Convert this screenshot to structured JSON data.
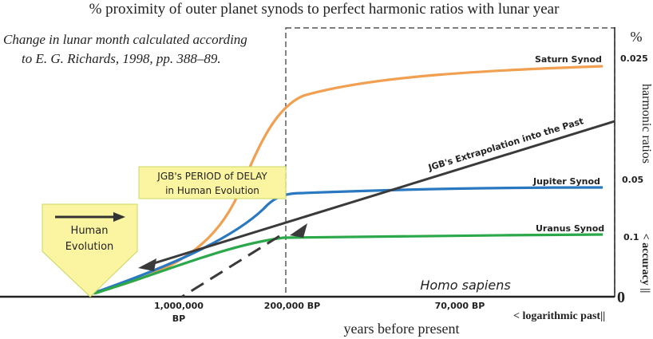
{
  "chart_data": {
    "type": "line",
    "title": "% proximity of outer planet synods to perfect harmonic ratios with lunar year",
    "subtitle": [
      "Change in lunar month calculated according",
      "to E. G. Richards, 1998, pp. 388–89."
    ],
    "xlabel": "years before present",
    "x_scale_label": "< logarithmic past||",
    "ylabel": "harmonic ratios",
    "ylabel_axis": "< accuracy ||",
    "y_unit": "%",
    "x_ticks": [
      {
        "label": [
          "1,000,000",
          "BP"
        ]
      },
      {
        "label": [
          "200,000 BP"
        ]
      },
      {
        "label": [
          "70,000 BP"
        ]
      }
    ],
    "y_ticks": [
      {
        "label": "0.025"
      },
      {
        "label": "0.05"
      },
      {
        "label": "0.1"
      },
      {
        "label": "0"
      }
    ],
    "region_label": "Homo sapiens",
    "series": [
      {
        "name": "Saturn Synod",
        "color": "#f0a050",
        "values": "low near 1,000,000 BP, steep rise to near 0.025 by 200,000 BP, then slow flattening rise"
      },
      {
        "name": "Jupiter Synod",
        "color": "#2a78c0",
        "values": "rises to near 0.05 by 200,000 BP, then flat"
      },
      {
        "name": "Uranus Synod",
        "color": "#2aa84a",
        "values": "rises to near 0.1 by 200,000 BP, then nearly flat"
      },
      {
        "name": "JGB's Extrapolation into the Past",
        "color": "#3a3a3a",
        "values": "straight line from present back to 1,000,000 BP"
      }
    ],
    "annotations": {
      "delay_box": [
        "JGB's PERIOD of DELAY",
        "in Human Evolution"
      ],
      "evolution_box": [
        "Human",
        "Evolution"
      ]
    },
    "colors": {
      "saturn": "#f0a050",
      "jupiter": "#2a78c0",
      "uranus": "#2aa84a",
      "extrapolation": "#3a3a3a",
      "note_box": "#fbf4a0",
      "note_border": "#c8d860"
    }
  }
}
